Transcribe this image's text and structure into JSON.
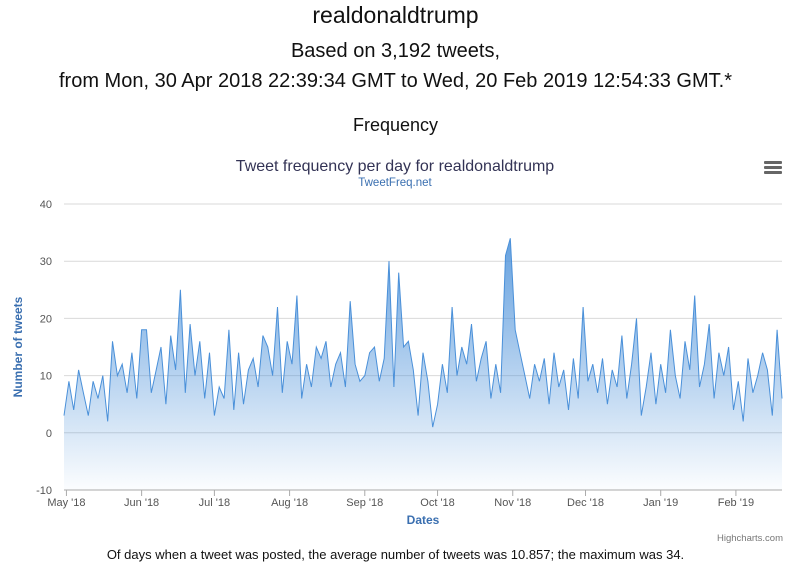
{
  "page": {
    "title": "realdonaldtrump",
    "summary_line1": "Based on 3,192 tweets,",
    "summary_line2": "from Mon, 30 Apr 2018 22:39:34 GMT to Wed, 20 Feb 2019 12:54:33 GMT.*",
    "section_heading": "Frequency",
    "footer_note": "Of days when a tweet was posted, the average number of tweets was 10.857; the maximum was 34."
  },
  "chart_data": {
    "type": "area",
    "title": "Tweet frequency per day for realdonaldtrump",
    "subtitle": "TweetFreq.net",
    "xlabel": "Dates",
    "ylabel": "Number of tweets",
    "ylim": [
      -10,
      40
    ],
    "y_ticks": [
      -10,
      0,
      10,
      20,
      30,
      40
    ],
    "x_range": [
      "2018-04-30",
      "2019-02-20"
    ],
    "x_ticks": [
      {
        "date": "2018-05-01",
        "label": "May '18"
      },
      {
        "date": "2018-06-01",
        "label": "Jun '18"
      },
      {
        "date": "2018-07-01",
        "label": "Jul '18"
      },
      {
        "date": "2018-08-01",
        "label": "Aug '18"
      },
      {
        "date": "2018-09-01",
        "label": "Sep '18"
      },
      {
        "date": "2018-10-01",
        "label": "Oct '18"
      },
      {
        "date": "2018-11-01",
        "label": "Nov '18"
      },
      {
        "date": "2018-12-01",
        "label": "Dec '18"
      },
      {
        "date": "2019-01-01",
        "label": "Jan '19"
      },
      {
        "date": "2019-02-01",
        "label": "Feb '19"
      }
    ],
    "grid": true,
    "legend": "none",
    "series_color": "#4a90d9",
    "credits": "Highcharts.com",
    "series": [
      {
        "x": [
          "2018-04-30",
          "2018-05-02",
          "2018-05-04",
          "2018-05-06",
          "2018-05-08",
          "2018-05-10",
          "2018-05-12",
          "2018-05-14",
          "2018-05-16",
          "2018-05-18",
          "2018-05-20",
          "2018-05-22",
          "2018-05-24",
          "2018-05-26",
          "2018-05-28",
          "2018-05-30",
          "2018-06-01",
          "2018-06-03",
          "2018-06-05",
          "2018-06-07",
          "2018-06-09",
          "2018-06-11",
          "2018-06-13",
          "2018-06-15",
          "2018-06-17",
          "2018-06-19",
          "2018-06-21",
          "2018-06-23",
          "2018-06-25",
          "2018-06-27",
          "2018-06-29",
          "2018-07-01",
          "2018-07-03",
          "2018-07-05",
          "2018-07-07",
          "2018-07-09",
          "2018-07-11",
          "2018-07-13",
          "2018-07-15",
          "2018-07-17",
          "2018-07-19",
          "2018-07-21",
          "2018-07-23",
          "2018-07-25",
          "2018-07-27",
          "2018-07-29",
          "2018-07-31",
          "2018-08-02",
          "2018-08-04",
          "2018-08-06",
          "2018-08-08",
          "2018-08-10",
          "2018-08-12",
          "2018-08-14",
          "2018-08-16",
          "2018-08-18",
          "2018-08-20",
          "2018-08-22",
          "2018-08-24",
          "2018-08-26",
          "2018-08-28",
          "2018-08-30",
          "2018-09-01",
          "2018-09-03",
          "2018-09-05",
          "2018-09-07",
          "2018-09-09",
          "2018-09-11",
          "2018-09-13",
          "2018-09-15",
          "2018-09-17",
          "2018-09-19",
          "2018-09-21",
          "2018-09-23",
          "2018-09-25",
          "2018-09-27",
          "2018-09-29",
          "2018-10-01",
          "2018-10-03",
          "2018-10-05",
          "2018-10-07",
          "2018-10-09",
          "2018-10-11",
          "2018-10-13",
          "2018-10-15",
          "2018-10-17",
          "2018-10-19",
          "2018-10-21",
          "2018-10-23",
          "2018-10-25",
          "2018-10-27",
          "2018-10-29",
          "2018-10-31",
          "2018-11-02",
          "2018-11-04",
          "2018-11-06",
          "2018-11-08",
          "2018-11-10",
          "2018-11-12",
          "2018-11-14",
          "2018-11-16",
          "2018-11-18",
          "2018-11-20",
          "2018-11-22",
          "2018-11-24",
          "2018-11-26",
          "2018-11-28",
          "2018-11-30",
          "2018-12-02",
          "2018-12-04",
          "2018-12-06",
          "2018-12-08",
          "2018-12-10",
          "2018-12-12",
          "2018-12-14",
          "2018-12-16",
          "2018-12-18",
          "2018-12-20",
          "2018-12-22",
          "2018-12-24",
          "2018-12-26",
          "2018-12-28",
          "2018-12-30",
          "2019-01-01",
          "2019-01-03",
          "2019-01-05",
          "2019-01-07",
          "2019-01-09",
          "2019-01-11",
          "2019-01-13",
          "2019-01-15",
          "2019-01-17",
          "2019-01-19",
          "2019-01-21",
          "2019-01-23",
          "2019-01-25",
          "2019-01-27",
          "2019-01-29",
          "2019-01-31",
          "2019-02-02",
          "2019-02-04",
          "2019-02-06",
          "2019-02-08",
          "2019-02-10",
          "2019-02-12",
          "2019-02-14",
          "2019-02-16",
          "2019-02-18",
          "2019-02-20"
        ],
        "values": [
          3,
          9,
          4,
          11,
          7,
          3,
          9,
          6,
          10,
          2,
          16,
          10,
          12,
          7,
          14,
          6,
          18,
          18,
          7,
          11,
          15,
          5,
          17,
          11,
          25,
          7,
          19,
          10,
          16,
          6,
          14,
          3,
          8,
          6,
          18,
          4,
          14,
          5,
          11,
          13,
          8,
          17,
          15,
          10,
          22,
          7,
          16,
          12,
          24,
          6,
          12,
          8,
          15,
          13,
          16,
          8,
          12,
          14,
          8,
          23,
          12,
          9,
          10,
          14,
          15,
          9,
          13,
          30,
          8,
          28,
          15,
          16,
          11,
          3,
          14,
          9,
          1,
          5,
          12,
          7,
          22,
          10,
          15,
          12,
          19,
          9,
          13,
          16,
          6,
          12,
          7,
          31,
          34,
          18,
          14,
          10,
          6,
          12,
          9,
          13,
          5,
          14,
          8,
          11,
          4,
          13,
          6,
          22,
          9,
          12,
          7,
          13,
          5,
          11,
          8,
          17,
          6,
          12,
          20,
          3,
          8,
          14,
          5,
          12,
          7,
          18,
          10,
          6,
          16,
          11,
          24,
          8,
          12,
          19,
          6,
          14,
          10,
          15,
          4,
          9,
          2,
          13,
          7,
          10,
          14,
          11,
          3,
          18,
          6
        ],
        "name": ""
      }
    ]
  }
}
